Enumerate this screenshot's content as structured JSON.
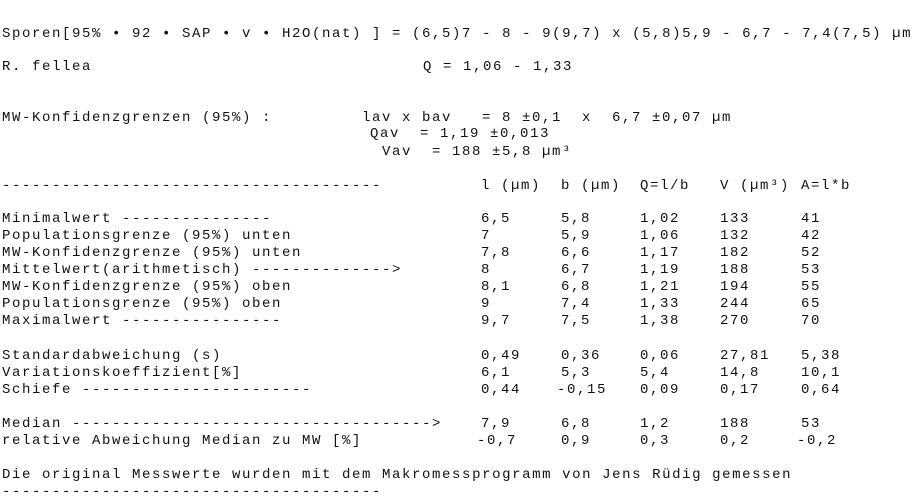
{
  "header": {
    "spore_line": "Sporen[95% • 92 • SAP • v • H2O(nat) ] = (6,5)7 - 8 - 9(9,7) x (5,8)5,9 - 6,7 - 7,4(7,5) µm",
    "species": "R. fellea",
    "q_range": "Q = 1,06 - 1,33"
  },
  "confidence": {
    "label": "MW-Konfidenzgrenzen (95%) :",
    "lav_bav": "lav x bav   = 8 ±0,1  x  6,7 ±0,07 µm",
    "qav": "Qav  = 1,19 ±0,013",
    "vav": "Vav  = 188 ±5,8 µm³"
  },
  "table": {
    "separator": "--------------------------------------",
    "headers": [
      "l (µm)",
      "b (µm)",
      "Q=l/b",
      "V (µm³)",
      "A=l*b"
    ],
    "group1": [
      {
        "label": "Minimalwert ---------------",
        "values": [
          "6,5",
          "5,8",
          "1,02",
          "133",
          "41"
        ]
      },
      {
        "label": "Populationsgrenze (95%) unten",
        "values": [
          "7",
          "5,9",
          "1,06",
          "132",
          "42"
        ]
      },
      {
        "label": "MW-Konfidenzgrenze (95%) unten",
        "values": [
          "7,8",
          "6,6",
          "1,17",
          "182",
          "52"
        ]
      },
      {
        "label": "Mittelwert(arithmetisch) -------------->",
        "values": [
          "8",
          "6,7",
          "1,19",
          "188",
          "53"
        ]
      },
      {
        "label": "MW-Konfidenzgrenze (95%) oben",
        "values": [
          "8,1",
          "6,8",
          "1,21",
          "194",
          "55"
        ]
      },
      {
        "label": "Populationsgrenze (95%) oben",
        "values": [
          "9",
          "7,4",
          "1,33",
          "244",
          "65"
        ]
      },
      {
        "label": "Maximalwert ----------------",
        "values": [
          "9,7",
          "7,5",
          "1,38",
          "270",
          "70"
        ]
      }
    ],
    "group2": [
      {
        "label": "Standardabweichung (s)",
        "values": [
          "0,49",
          "0,36",
          "0,06",
          "27,81",
          "5,38"
        ]
      },
      {
        "label": "Variationskoeffizient[%]",
        "values": [
          "6,1",
          "5,3",
          "5,4",
          "14,8",
          "10,1"
        ]
      },
      {
        "label": "Schiefe -----------------------",
        "values": [
          "0,44",
          "-0,15",
          "0,09",
          "0,17",
          "0,64"
        ]
      }
    ],
    "group3": [
      {
        "label": "Median ------------------------------------>",
        "values": [
          "7,9",
          "6,8",
          "1,2",
          "188",
          "53"
        ]
      },
      {
        "label": "relative Abweichung Median zu MW [%]",
        "values": [
          "-0,7",
          "0,9",
          "0,3",
          "0,2",
          "-0,2"
        ]
      }
    ]
  },
  "footer": {
    "note": "Die original Messwerte wurden mit dem Makromessprogramm von Jens Rüdig gemessen",
    "separator": "--------------------------------------"
  }
}
